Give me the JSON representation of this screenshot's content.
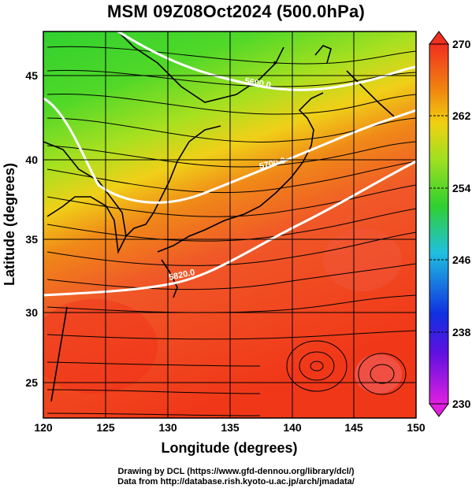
{
  "title": "MSM 09Z08Oct2024 (500.0hPa)",
  "x_axis": {
    "label": "Longitude (degrees)",
    "ticks": [
      120,
      125,
      130,
      135,
      140,
      145,
      150
    ],
    "range": [
      120,
      150
    ]
  },
  "y_axis": {
    "label": "Latitude  (degrees)",
    "ticks": [
      25,
      30,
      35,
      40,
      45
    ],
    "range": [
      22.4,
      47.6
    ]
  },
  "colorbar": {
    "min": 230,
    "max": 270,
    "tick_labels": [
      "270",
      "262",
      "254",
      "246",
      "238",
      "230"
    ],
    "tick_values": [
      270,
      262,
      254,
      246,
      238,
      230
    ]
  },
  "contours": [
    {
      "value": 5600,
      "label": "5600.0"
    },
    {
      "value": 5700,
      "label": "5700.0"
    },
    {
      "value": 5820,
      "label": "5820.0"
    }
  ],
  "credits": {
    "line1": "Drawing by DCL (https://www.gfd-dennou.org/library/dcl/)",
    "line2": "Data from http://database.rish.kyoto-u.ac.jp/arch/jmadata/"
  },
  "colors": {
    "cold": "#e020e0",
    "blue": "#1030e0",
    "cyan": "#20c0e0",
    "green": "#30d030",
    "yellow": "#d0e020",
    "orange": "#f08010",
    "red": "#f03020",
    "contour": "#ffffff",
    "streamline": "#000000"
  }
}
